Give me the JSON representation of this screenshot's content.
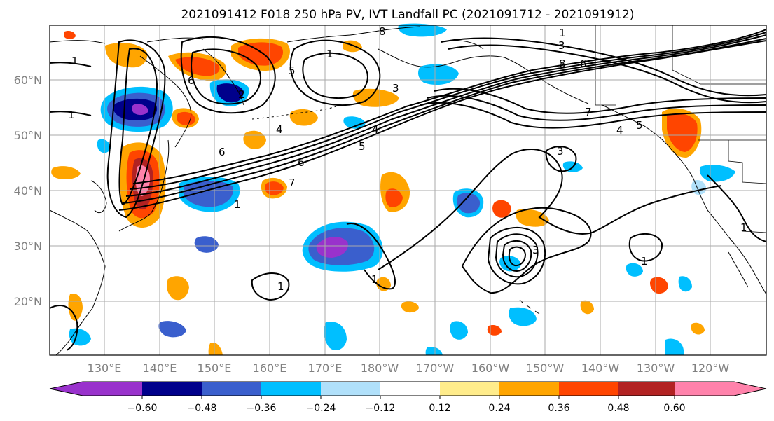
{
  "title": "2021091412 F018 250 hPa PV, IVT Landfall PC (2021091712 - 2021091912)",
  "lat_labels": [
    "60°N",
    "50°N",
    "40°N",
    "30°N",
    "20°N"
  ],
  "lon_labels": [
    "130°E",
    "140°E",
    "150°E",
    "160°E",
    "170°E",
    "180°W",
    "170°W",
    "160°W",
    "150°W",
    "140°W",
    "130°W",
    "120°W"
  ],
  "colorbar": {
    "colors": [
      "#9932cc",
      "#00008b",
      "#3a5fcd",
      "#00bfff",
      "#b0e0fa",
      "#ffffff",
      "#ffec8b",
      "#ffa500",
      "#ff4500",
      "#b22222",
      "#ff82ab"
    ],
    "ticks": [
      "−0.60",
      "−0.48",
      "−0.36",
      "−0.24",
      "−0.12",
      "0.12",
      "0.24",
      "0.36",
      "0.48",
      "0.60"
    ]
  },
  "contour_labels": [
    "1",
    "1",
    "1",
    "1",
    "1",
    "1",
    "1",
    "1",
    "1",
    "2",
    "3",
    "3",
    "3",
    "3",
    "4",
    "4",
    "4",
    "5",
    "5",
    "5",
    "6",
    "6",
    "6",
    "6",
    "7",
    "7",
    "8",
    "8"
  ]
}
